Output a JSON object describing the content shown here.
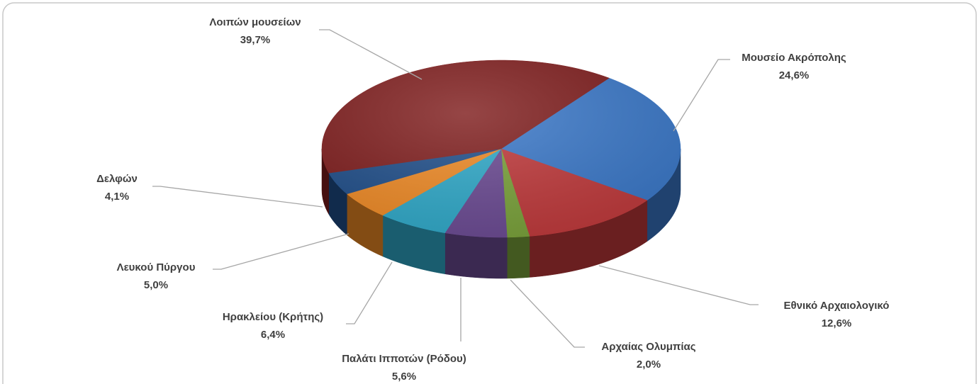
{
  "chart_data": {
    "type": "pie",
    "categories": [
      "Μουσείο Ακρόπολης",
      "Εθνικό Αρχαιολογικό",
      "Αρχαίας Ολυμπίας",
      "Παλάτι Ιπποτών (Ρόδου)",
      "Ηρακλείου (Κρήτης)",
      "Λευκού Πύργου",
      "Δελφών",
      "Λοιπών μουσείων"
    ],
    "values": [
      24.6,
      12.6,
      2.0,
      5.6,
      6.4,
      5.0,
      4.1,
      39.7
    ],
    "value_labels": [
      "24,6%",
      "12,6%",
      "2,0%",
      "5,6%",
      "6,4%",
      "5,0%",
      "4,1%",
      "39,7%"
    ],
    "colors": [
      "#3a78c9",
      "#c0393b",
      "#7aa23a",
      "#6b4a93",
      "#2fa9c9",
      "#ef8a25",
      "#1f4e8a",
      "#7f1d1d"
    ]
  }
}
